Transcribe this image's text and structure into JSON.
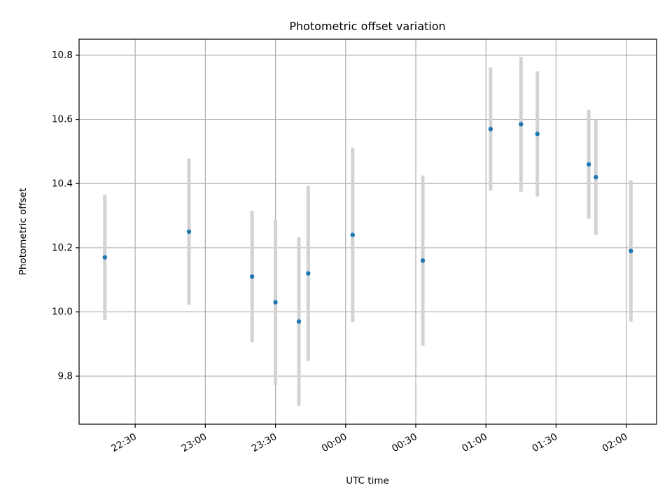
{
  "chart_data": {
    "type": "scatter",
    "title": "Photometric offset variation",
    "xlabel": "UTC time",
    "ylabel": "Photometric offset",
    "x_ticks": [
      "22:30",
      "23:00",
      "23:30",
      "00:00",
      "00:30",
      "01:00",
      "01:30",
      "02:00"
    ],
    "y_ticks": [
      "9.8",
      "10.0",
      "10.2",
      "10.4",
      "10.6",
      "10.8"
    ],
    "ylim": [
      9.65,
      10.85
    ],
    "xlim": [
      "2023-01-01T22:06:00",
      "2023-01-02T02:13:00"
    ],
    "grid": true,
    "series": [
      {
        "marker_color": "#1f77b4",
        "errorbar_color": "#d3d3d3",
        "points": [
          {
            "time": "2023-01-01T22:17:00",
            "value": 10.17,
            "err": 0.195
          },
          {
            "time": "2023-01-01T22:53:00",
            "value": 10.25,
            "err": 0.228
          },
          {
            "time": "2023-01-01T23:20:00",
            "value": 10.11,
            "err": 0.205
          },
          {
            "time": "2023-01-01T23:30:00",
            "value": 10.03,
            "err": 0.258
          },
          {
            "time": "2023-01-01T23:40:00",
            "value": 9.97,
            "err": 0.263
          },
          {
            "time": "2023-01-01T23:44:00",
            "value": 10.12,
            "err": 0.273
          },
          {
            "time": "2023-01-02T00:03:00",
            "value": 10.24,
            "err": 0.272
          },
          {
            "time": "2023-01-02T00:33:00",
            "value": 10.16,
            "err": 0.265
          },
          {
            "time": "2023-01-02T01:02:00",
            "value": 10.57,
            "err": 0.192
          },
          {
            "time": "2023-01-02T01:15:00",
            "value": 10.585,
            "err": 0.21
          },
          {
            "time": "2023-01-02T01:22:00",
            "value": 10.555,
            "err": 0.195
          },
          {
            "time": "2023-01-02T01:44:00",
            "value": 10.46,
            "err": 0.17
          },
          {
            "time": "2023-01-02T01:47:00",
            "value": 10.42,
            "err": 0.18
          },
          {
            "time": "2023-01-02T02:02:00",
            "value": 10.19,
            "err": 0.22
          }
        ]
      }
    ]
  }
}
